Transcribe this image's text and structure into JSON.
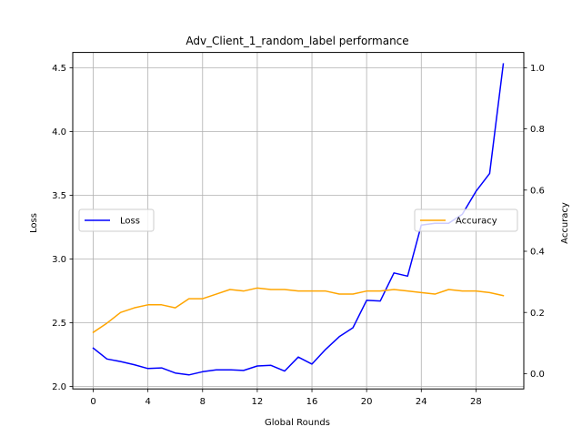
{
  "chart_data": {
    "type": "line",
    "title": "Adv_Client_1_random_label performance",
    "xlabel": "Global Rounds",
    "ylabel_left": "Loss",
    "ylabel_right": "Accuracy",
    "xlim": [
      -1.5,
      31.5
    ],
    "ylim_left": [
      1.98,
      4.62
    ],
    "ylim_right": [
      -0.05,
      1.05
    ],
    "x_ticks": [
      0,
      4,
      8,
      12,
      16,
      20,
      24,
      28
    ],
    "y_ticks_left": [
      2.0,
      2.5,
      3.0,
      3.5,
      4.0,
      4.5
    ],
    "y_ticks_right": [
      0.0,
      0.2,
      0.4,
      0.6,
      0.8,
      1.0
    ],
    "grid": true,
    "x": [
      0,
      1,
      2,
      3,
      4,
      5,
      6,
      7,
      8,
      9,
      10,
      11,
      12,
      13,
      14,
      15,
      16,
      17,
      18,
      19,
      20,
      21,
      22,
      23,
      24,
      25,
      26,
      27,
      28,
      29,
      30
    ],
    "series": [
      {
        "name": "Loss",
        "axis": "left",
        "color": "#0000ff",
        "legend_position": "center-left",
        "values": [
          2.3,
          2.215,
          2.195,
          2.17,
          2.14,
          2.145,
          2.105,
          2.09,
          2.115,
          2.13,
          2.13,
          2.125,
          2.16,
          2.165,
          2.12,
          2.23,
          2.175,
          2.29,
          2.39,
          2.46,
          2.675,
          2.67,
          2.89,
          2.865,
          3.265,
          3.28,
          3.28,
          3.35,
          3.53,
          3.67,
          4.53
        ]
      },
      {
        "name": "Accuracy",
        "axis": "right",
        "color": "#ffa500",
        "legend_position": "center-right",
        "values": [
          0.135,
          0.165,
          0.2,
          0.215,
          0.225,
          0.225,
          0.215,
          0.245,
          0.245,
          0.26,
          0.275,
          0.27,
          0.28,
          0.275,
          0.275,
          0.27,
          0.27,
          0.27,
          0.26,
          0.26,
          0.27,
          0.27,
          0.275,
          0.27,
          0.265,
          0.26,
          0.275,
          0.27,
          0.27,
          0.265,
          0.255
        ]
      }
    ]
  }
}
